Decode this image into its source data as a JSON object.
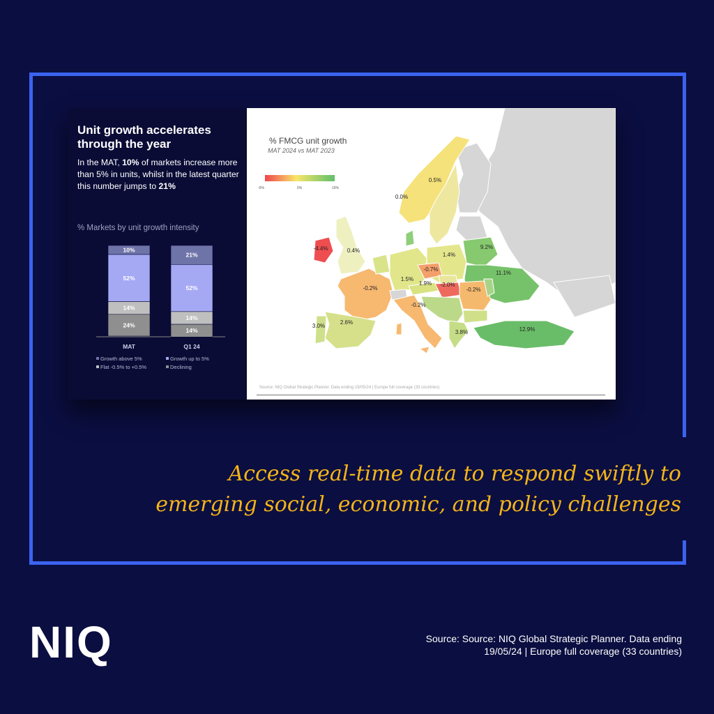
{
  "panel": {
    "title": "Unit growth accelerates through the year",
    "desc_pre": "In the MAT, ",
    "desc_b1": "10%",
    "desc_mid": " of markets increase more than 5% in units, whilst in the latest quarter this number jumps to ",
    "desc_b2": "21%",
    "subtitle": "% Markets by unit growth intensity"
  },
  "chart_data": {
    "type": "bar",
    "stacked": true,
    "categories": [
      "MAT",
      "Q1 24"
    ],
    "series": [
      {
        "name": "Growth above 5%",
        "values": [
          10,
          21
        ],
        "color": "#6f74a8"
      },
      {
        "name": "Growth up to 5%",
        "values": [
          52,
          52
        ],
        "color": "#a5a9f4"
      },
      {
        "name": "Flat -0.5% to +0.5%",
        "values": [
          14,
          14
        ],
        "color": "#bfbfbf"
      },
      {
        "name": "Declining",
        "values": [
          24,
          14
        ],
        "color": "#8f8f8f"
      }
    ],
    "legend_order": [
      "Growth above 5%",
      "Growth up to 5%",
      "Flat -0.5% to +0.5%",
      "Declining"
    ],
    "ylim": [
      0,
      100
    ]
  },
  "map": {
    "title": "% FMCG unit growth",
    "subtitle": "MAT 2024 vs MAT 2023",
    "legend_min": "-5%",
    "legend_mid": "5%",
    "legend_max": "15%",
    "source": "Source: NIQ Global Strategic Planner. Data ending 19/05/24 | Europe full coverage (33 countries)",
    "values": [
      {
        "country": "Norway",
        "label": "0.0%",
        "color": "#f5e27a"
      },
      {
        "country": "Sweden",
        "label": "0.5%",
        "color": "#eee7a0"
      },
      {
        "country": "Ireland",
        "label": "-4.4%",
        "color": "#ee4e50"
      },
      {
        "country": "United Kingdom",
        "label": "0.4%",
        "color": "#eef0c0"
      },
      {
        "country": "Germany",
        "label": "1.5%",
        "color": "#e1e68a"
      },
      {
        "country": "Poland",
        "label": "1.4%",
        "color": "#e4e68c"
      },
      {
        "country": "Belarus",
        "label": "9.2%",
        "color": "#86c96e"
      },
      {
        "country": "Ukraine",
        "label": "11.1%",
        "color": "#76c26a"
      },
      {
        "country": "Czechia",
        "label": "-0.7%",
        "color": "#f3a06a"
      },
      {
        "country": "France",
        "label": "-0.2%",
        "color": "#f7b870"
      },
      {
        "country": "Austria",
        "label": "1.9%",
        "color": "#d9e280"
      },
      {
        "country": "Hungary",
        "label": "-2.0%",
        "color": "#ee6a5e"
      },
      {
        "country": "Romania",
        "label": "-0.2%",
        "color": "#f5b96d"
      },
      {
        "country": "Italy",
        "label": "-0.2%",
        "color": "#f7b870"
      },
      {
        "country": "Portugal",
        "label": "3.0%",
        "color": "#cfe08a"
      },
      {
        "country": "Spain",
        "label": "2.6%",
        "color": "#d6e08a"
      },
      {
        "country": "Greece",
        "label": "3.8%",
        "color": "#c5dd86"
      },
      {
        "country": "Turkey",
        "label": "12.9%",
        "color": "#6abd68"
      }
    ]
  },
  "tagline": {
    "line1": "Access real-time data to respond swiftly to",
    "line2": "emerging social, economic, and policy challenges"
  },
  "footer": {
    "logo": "NIQ",
    "source_line1": "Source: Source: NIQ Global Strategic Planner. Data ending",
    "source_line2": "19/05/24 | Europe full coverage (33 countries)"
  }
}
